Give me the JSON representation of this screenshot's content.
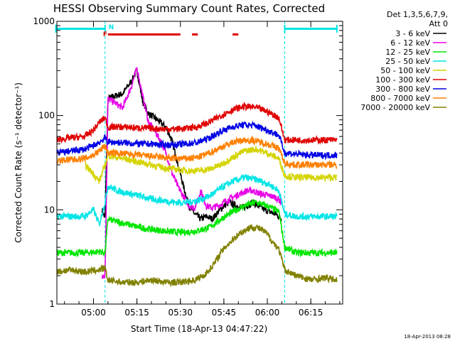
{
  "colors": {
    "background": "#ffffff",
    "axes": "#000000",
    "attenuator_bar": "#00e5e5",
    "flare_bar": "#e00000",
    "flag_f": "#e00000",
    "flag_n": "#00e5e5"
  },
  "chart_data": {
    "type": "line",
    "title": "HESSI Observing Summary Count Rates, Corrected",
    "xlabel": "Start Time (18-Apr-13 04:47:22)",
    "ylabel": "Corrected Count Rate (s⁻¹ detector⁻¹)",
    "x_unit": "UT time",
    "xlim": [
      "04:47:22",
      "06:26:00"
    ],
    "ylim": [
      1,
      1000
    ],
    "y_scale": "log",
    "x_ticks": [
      "05:00",
      "05:15",
      "05:30",
      "05:45",
      "06:00",
      "06:15"
    ],
    "y_ticks": [
      "1",
      "10",
      "100",
      "1000"
    ],
    "grid": false,
    "legend_position": "top-right, outside plot",
    "detectors_label": "Det 1,3,5,6,7,9,",
    "attenuator_label": "Att 0",
    "timestamp": "18-Apr-2013 08:28",
    "flags": {
      "flare": "F",
      "night": "N",
      "night_times": [
        "05:04",
        "06:06"
      ],
      "attenuator_bars": [
        [
          "04:47",
          "05:04"
        ],
        [
          "06:06",
          "06:24"
        ]
      ],
      "flare_bars": [
        [
          "05:05",
          "05:30"
        ],
        [
          "05:34",
          "05:36"
        ],
        [
          "05:48",
          "05:50"
        ]
      ]
    },
    "series": [
      {
        "name": "3 - 6 keV",
        "color": "#000000",
        "x": [
          "05:03",
          "05:04",
          "05:05",
          "05:07",
          "05:10",
          "05:13",
          "05:15",
          "05:17",
          "05:19",
          "05:21",
          "05:23",
          "05:25",
          "05:27",
          "05:29",
          "05:31",
          "05:33",
          "05:35",
          "05:37",
          "05:39",
          "05:41",
          "05:43",
          "05:45",
          "05:47",
          "05:49",
          "05:51",
          "05:53",
          "05:55",
          "05:57",
          "05:59",
          "06:01",
          "06:03",
          "06:05"
        ],
        "values": [
          10,
          8,
          150,
          160,
          170,
          230,
          300,
          140,
          105,
          95,
          85,
          75,
          55,
          32,
          18,
          11,
          9,
          8,
          8.5,
          8,
          9.5,
          11,
          12,
          11,
          10.5,
          11,
          12,
          11,
          10,
          9.5,
          9,
          8
        ]
      },
      {
        "name": "6 - 12 keV",
        "color": "#e600e6",
        "x": [
          "05:03",
          "05:04",
          "05:05",
          "05:07",
          "05:10",
          "05:13",
          "05:15",
          "05:17",
          "05:19",
          "05:21",
          "05:23",
          "05:25",
          "05:27",
          "05:29",
          "05:31",
          "05:33",
          "05:35",
          "05:37",
          "05:39",
          "05:41",
          "05:43",
          "05:45",
          "05:47",
          "05:49",
          "05:51",
          "05:53",
          "05:55",
          "05:57",
          "05:59",
          "06:01",
          "06:03",
          "06:05"
        ],
        "values": [
          2,
          2,
          150,
          140,
          120,
          200,
          320,
          160,
          85,
          70,
          55,
          40,
          25,
          18,
          14,
          11,
          10.5,
          16,
          11,
          10.5,
          11,
          12,
          13,
          14,
          15,
          16,
          16,
          15,
          14.5,
          14,
          13.5,
          12
        ]
      },
      {
        "name": "12 - 25 keV",
        "color": "#00e600",
        "x": [
          "04:47",
          "04:52",
          "04:57",
          "05:02",
          "05:04",
          "05:05",
          "05:08",
          "05:12",
          "05:16",
          "05:20",
          "05:24",
          "05:28",
          "05:32",
          "05:36",
          "05:40",
          "05:44",
          "05:48",
          "05:52",
          "05:56",
          "06:00",
          "06:04",
          "06:06",
          "06:10",
          "06:15",
          "06:20",
          "06:24"
        ],
        "values": [
          3.5,
          3.5,
          3.5,
          3.6,
          3.5,
          8,
          7.5,
          7,
          6.5,
          6.2,
          6,
          5.8,
          5.8,
          6,
          6.5,
          8,
          9.5,
          11,
          12,
          11,
          9.5,
          4,
          3.5,
          3.5,
          3.5,
          3.5
        ]
      },
      {
        "name": "25 - 50 keV",
        "color": "#00e5e5",
        "x": [
          "04:47",
          "04:52",
          "04:57",
          "05:00",
          "05:02",
          "05:04",
          "05:05",
          "05:08",
          "05:12",
          "05:16",
          "05:20",
          "05:24",
          "05:28",
          "05:32",
          "05:36",
          "05:40",
          "05:44",
          "05:48",
          "05:52",
          "05:56",
          "06:00",
          "06:04",
          "06:06",
          "06:10",
          "06:15",
          "06:20",
          "06:24"
        ],
        "values": [
          8.5,
          8.5,
          8.5,
          10,
          7,
          12,
          18,
          16,
          15,
          14,
          13,
          12.5,
          12,
          12,
          12.5,
          14,
          17,
          20,
          22,
          21,
          19,
          16,
          9,
          8.5,
          8.5,
          8.5,
          8.5
        ]
      },
      {
        "name": "50 - 100 keV",
        "color": "#d4d400",
        "x": [
          "04:57",
          "05:00",
          "05:02",
          "05:04",
          "05:05",
          "05:08",
          "05:12",
          "05:16",
          "05:20",
          "05:24",
          "05:28",
          "05:32",
          "05:36",
          "05:40",
          "05:44",
          "05:48",
          "05:52",
          "05:56",
          "06:00",
          "06:04",
          "06:06",
          "06:10",
          "06:15",
          "06:20",
          "06:24"
        ],
        "values": [
          30,
          24,
          20,
          30,
          38,
          36,
          34,
          32,
          30,
          28,
          27,
          26,
          26,
          27,
          30,
          36,
          42,
          44,
          40,
          35,
          23,
          22,
          22,
          22,
          22
        ]
      },
      {
        "name": "100 - 300 keV",
        "color": "#e00000",
        "x": [
          "04:47",
          "04:52",
          "04:57",
          "05:00",
          "05:02",
          "05:04",
          "05:05",
          "05:08",
          "05:12",
          "05:16",
          "05:20",
          "05:24",
          "05:28",
          "05:32",
          "05:36",
          "05:40",
          "05:44",
          "05:48",
          "05:52",
          "05:56",
          "06:00",
          "06:04",
          "06:06",
          "06:10",
          "06:15",
          "06:20",
          "06:24"
        ],
        "values": [
          55,
          58,
          60,
          70,
          85,
          95,
          75,
          76,
          75,
          74,
          73,
          72,
          72,
          73,
          76,
          85,
          100,
          115,
          125,
          122,
          110,
          95,
          55,
          55,
          55,
          55,
          55
        ]
      },
      {
        "name": "300 - 800 keV",
        "color": "#0000e6",
        "x": [
          "04:47",
          "04:52",
          "04:57",
          "05:00",
          "05:02",
          "05:04",
          "05:05",
          "05:08",
          "05:12",
          "05:16",
          "05:20",
          "05:24",
          "05:28",
          "05:32",
          "05:36",
          "05:40",
          "05:44",
          "05:48",
          "05:52",
          "05:56",
          "06:00",
          "06:04",
          "06:06",
          "06:10",
          "06:15",
          "06:20",
          "06:24"
        ],
        "values": [
          40,
          42,
          44,
          48,
          52,
          58,
          52,
          52,
          51,
          50,
          50,
          49,
          49,
          50,
          52,
          58,
          68,
          76,
          80,
          78,
          70,
          62,
          40,
          39,
          38,
          38,
          38
        ]
      },
      {
        "name": "800 - 7000 keV",
        "color": "#ff8000",
        "x": [
          "04:47",
          "04:52",
          "04:57",
          "05:00",
          "05:02",
          "05:04",
          "05:05",
          "05:08",
          "05:12",
          "05:16",
          "05:20",
          "05:24",
          "05:28",
          "05:32",
          "05:36",
          "05:40",
          "05:44",
          "05:48",
          "05:52",
          "05:56",
          "06:00",
          "06:04",
          "06:06",
          "06:10",
          "06:15",
          "06:20",
          "06:24"
        ],
        "values": [
          33,
          34,
          35,
          38,
          42,
          48,
          40,
          40,
          39,
          38,
          37,
          36,
          35,
          35,
          36,
          40,
          46,
          52,
          55,
          54,
          50,
          45,
          31,
          30,
          30,
          30,
          30
        ]
      },
      {
        "name": "7000 - 20000 keV",
        "color": "#808000",
        "x": [
          "04:47",
          "04:52",
          "04:57",
          "05:02",
          "05:04",
          "05:05",
          "05:10",
          "05:15",
          "05:20",
          "05:25",
          "05:30",
          "05:35",
          "05:38",
          "05:40",
          "05:42",
          "05:44",
          "05:46",
          "05:48",
          "05:50",
          "05:52",
          "05:54",
          "05:56",
          "05:58",
          "06:00",
          "06:02",
          "06:04",
          "06:06",
          "06:10",
          "06:15",
          "06:20",
          "06:24"
        ],
        "values": [
          2.2,
          2.3,
          2.2,
          2.3,
          2.4,
          1.8,
          1.7,
          1.7,
          1.8,
          1.7,
          1.7,
          1.8,
          2.0,
          2.3,
          2.8,
          3.5,
          4.2,
          4.8,
          5.5,
          6.0,
          6.5,
          6.5,
          6.2,
          5.5,
          4.5,
          3.8,
          2.3,
          2.0,
          1.8,
          1.9,
          1.8
        ]
      }
    ]
  }
}
